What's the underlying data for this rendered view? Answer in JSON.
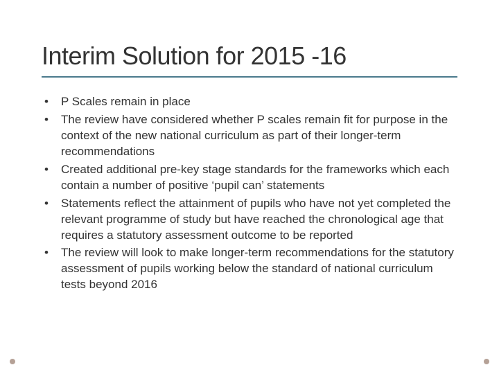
{
  "slide": {
    "title": "Interim Solution for 2015 -16",
    "title_color": "#333333",
    "underline_color": "#4a7a8c",
    "background_color": "#ffffff",
    "bullets": [
      "P Scales remain in place",
      "The review have considered whether P scales remain fit for purpose in the context of the new national curriculum as part of their longer-term recommendations",
      "Created additional pre-key stage standards for the frameworks which each contain a number of positive ‘pupil can’ statements",
      "Statements reflect the attainment of pupils who have not yet completed the relevant programme of study but have reached the chronological age that requires a statutory assessment outcome to be reported",
      "The review will look to make longer-term recommendations for the statutory assessment of pupils working below the standard of national curriculum tests beyond 2016"
    ],
    "bullet_marker": "•",
    "body_fontsize": 17,
    "title_fontsize": 36,
    "decor_color": "#b5a196"
  }
}
